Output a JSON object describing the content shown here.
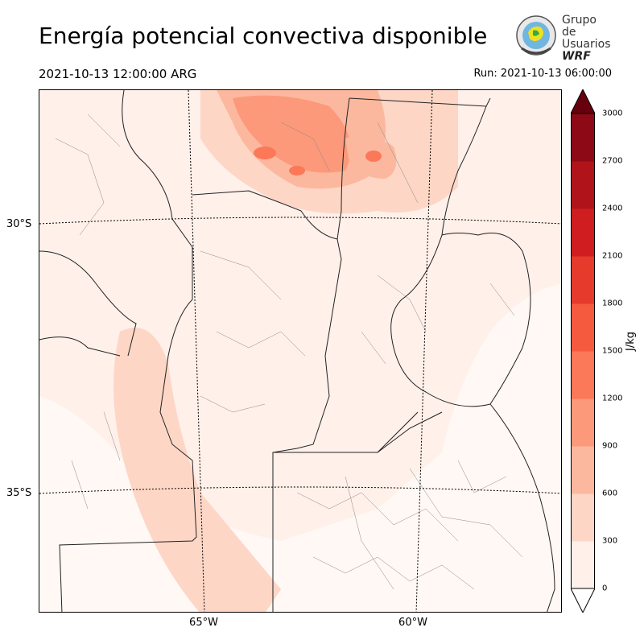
{
  "header": {
    "title": "Energía potencial convectiva disponible",
    "valid_time": "2021-10-13 12:00:00 ARG",
    "run_time": "Run: 2021-10-13 06:00:00"
  },
  "logo": {
    "line1": "Grupo de",
    "line2": "Usuarios",
    "line3": "WRF"
  },
  "map": {
    "lat_labels": [
      "30°S",
      "35°S"
    ],
    "lon_labels": [
      "65°W",
      "60°W"
    ]
  },
  "colorbar": {
    "unit": "J/kg",
    "ticks": [
      "0",
      "300",
      "600",
      "900",
      "1200",
      "1500",
      "1800",
      "2100",
      "2400",
      "2700",
      "3000"
    ],
    "colors": [
      "#fff0ea",
      "#fdd6c6",
      "#fcb89e",
      "#fc997a",
      "#fb7858",
      "#f55a3f",
      "#e63a2c",
      "#cf1d20",
      "#b1131b",
      "#8d0916",
      "#67000d"
    ]
  }
}
